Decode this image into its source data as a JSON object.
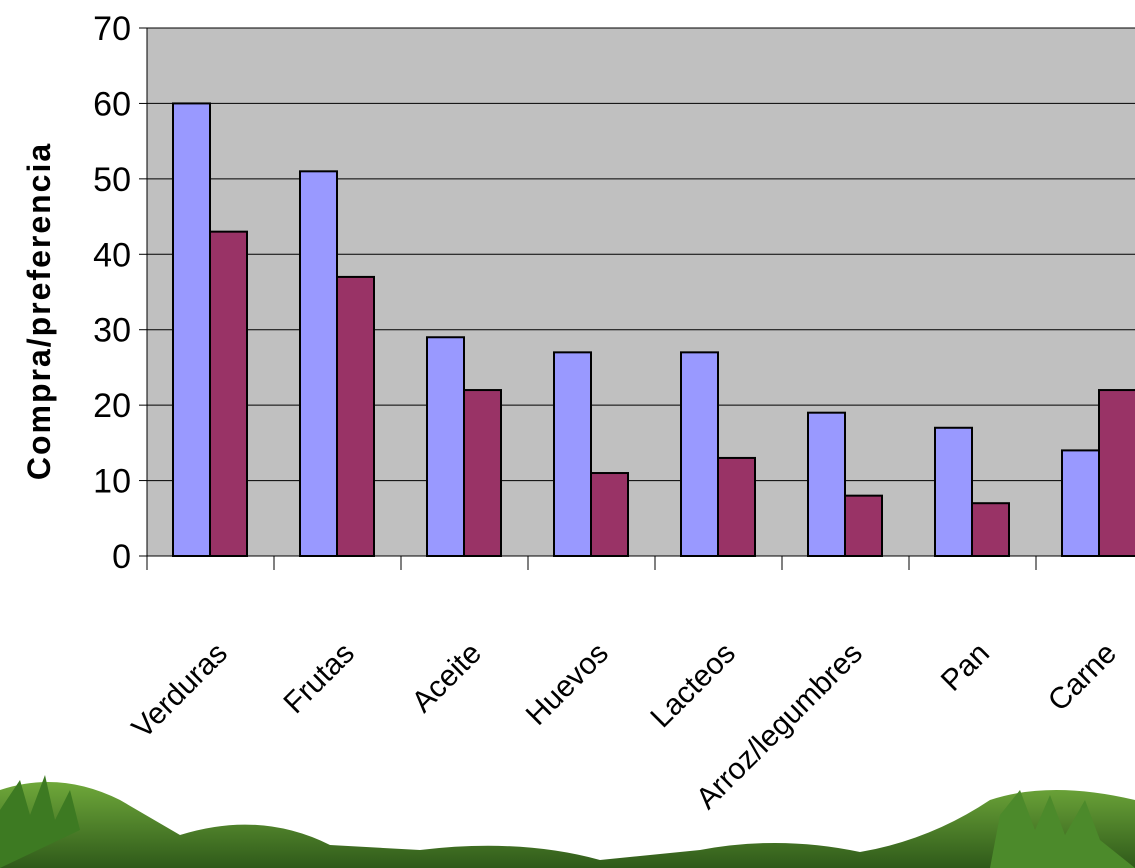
{
  "chart_data": {
    "type": "bar",
    "title": "",
    "xlabel": "",
    "ylabel": "Compra/preferencia",
    "ylim": [
      0,
      70
    ],
    "yticks": [
      0,
      10,
      20,
      30,
      40,
      50,
      60,
      70
    ],
    "grid": true,
    "legend": "none",
    "categories": [
      "Verduras",
      "Frutas",
      "Aceite",
      "Huevos",
      "Lacteos",
      "Arroz/legumbres",
      "Pan",
      "Carne"
    ],
    "series": [
      {
        "values": [
          60,
          51,
          29,
          27,
          27,
          19,
          17,
          14
        ],
        "color": "#9999ff"
      },
      {
        "values": [
          43,
          37,
          22,
          11,
          13,
          8,
          7,
          22
        ],
        "color": "#993366"
      }
    ],
    "plot_background": "#c0c0c0"
  }
}
